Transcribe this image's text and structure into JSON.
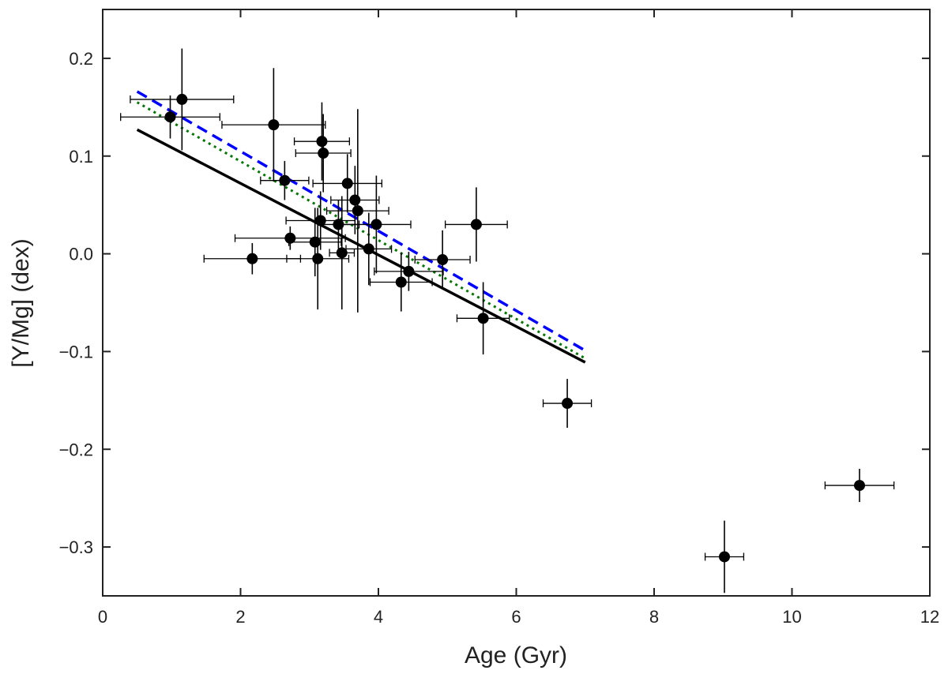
{
  "chart_data": {
    "type": "scatter",
    "title": "",
    "xlabel": "Age (Gyr)",
    "ylabel": "[Y/Mg] (dex)",
    "xlim": [
      0,
      12
    ],
    "ylim": [
      -0.35,
      0.25
    ],
    "xticks": [
      0,
      2,
      4,
      6,
      8,
      10,
      12
    ],
    "xtick_labels": [
      "0",
      "2",
      "4",
      "6",
      "8",
      "10",
      "12"
    ],
    "yticks": [
      -0.3,
      -0.2,
      -0.1,
      0.0,
      0.1,
      0.2
    ],
    "ytick_labels": [
      "−0.3",
      "−0.2",
      "−0.1",
      "0.0",
      "0.1",
      "0.2"
    ],
    "grid": false,
    "legend": "none",
    "series": [
      {
        "name": "stars",
        "kind": "points_with_errorbars",
        "color": "#000000",
        "points": [
          {
            "x": 0.98,
            "y": 0.14,
            "xerr": 0.72,
            "yerr": 0.022
          },
          {
            "x": 1.15,
            "y": 0.158,
            "xerr": 0.75,
            "yerr": 0.052
          },
          {
            "x": 2.17,
            "y": -0.005,
            "xerr": 0.7,
            "yerr": 0.016
          },
          {
            "x": 2.48,
            "y": 0.132,
            "xerr": 0.75,
            "yerr": 0.058
          },
          {
            "x": 2.64,
            "y": 0.075,
            "xerr": 0.35,
            "yerr": 0.02
          },
          {
            "x": 2.72,
            "y": 0.016,
            "xerr": 0.8,
            "yerr": 0.012
          },
          {
            "x": 3.08,
            "y": 0.012,
            "xerr": 0.38,
            "yerr": 0.035
          },
          {
            "x": 3.12,
            "y": -0.005,
            "xerr": 0.45,
            "yerr": 0.052
          },
          {
            "x": 3.16,
            "y": 0.034,
            "xerr": 0.5,
            "yerr": 0.03
          },
          {
            "x": 3.18,
            "y": 0.115,
            "xerr": 0.4,
            "yerr": 0.04
          },
          {
            "x": 3.2,
            "y": 0.103,
            "xerr": 0.4,
            "yerr": 0.04
          },
          {
            "x": 3.42,
            "y": 0.03,
            "xerr": 0.3,
            "yerr": 0.025
          },
          {
            "x": 3.47,
            "y": 0.001,
            "xerr": 0.18,
            "yerr": 0.058
          },
          {
            "x": 3.55,
            "y": 0.072,
            "xerr": 0.5,
            "yerr": 0.03
          },
          {
            "x": 3.66,
            "y": 0.055,
            "xerr": 0.35,
            "yerr": 0.035
          },
          {
            "x": 3.7,
            "y": 0.044,
            "xerr": 0.45,
            "yerr": 0.104
          },
          {
            "x": 3.86,
            "y": 0.005,
            "xerr": 0.33,
            "yerr": 0.037
          },
          {
            "x": 3.97,
            "y": 0.03,
            "xerr": 0.5,
            "yerr": 0.05
          },
          {
            "x": 4.33,
            "y": -0.029,
            "xerr": 0.45,
            "yerr": 0.03
          },
          {
            "x": 4.44,
            "y": -0.018,
            "xerr": 0.5,
            "yerr": 0.02
          },
          {
            "x": 4.93,
            "y": -0.006,
            "xerr": 0.4,
            "yerr": 0.03
          },
          {
            "x": 5.42,
            "y": 0.03,
            "xerr": 0.45,
            "yerr": 0.038
          },
          {
            "x": 5.52,
            "y": -0.066,
            "xerr": 0.38,
            "yerr": 0.037
          },
          {
            "x": 6.74,
            "y": -0.153,
            "xerr": 0.35,
            "yerr": 0.025
          },
          {
            "x": 9.02,
            "y": -0.31,
            "xerr": 0.28,
            "yerr": 0.037
          },
          {
            "x": 10.98,
            "y": -0.237,
            "xerr": 0.5,
            "yerr": 0.017
          }
        ]
      },
      {
        "name": "fit-solid",
        "kind": "line",
        "style": "solid",
        "color": "#000000",
        "x": [
          0.5,
          7.0
        ],
        "y": [
          0.127,
          -0.111
        ]
      },
      {
        "name": "fit-dashed",
        "kind": "line",
        "style": "dashed",
        "color": "#0000ff",
        "x": [
          0.5,
          7.0
        ],
        "y": [
          0.166,
          -0.099
        ]
      },
      {
        "name": "fit-dotted",
        "kind": "line",
        "style": "dotted",
        "color": "#007700",
        "x": [
          0.5,
          7.0
        ],
        "y": [
          0.155,
          -0.107
        ]
      }
    ]
  }
}
